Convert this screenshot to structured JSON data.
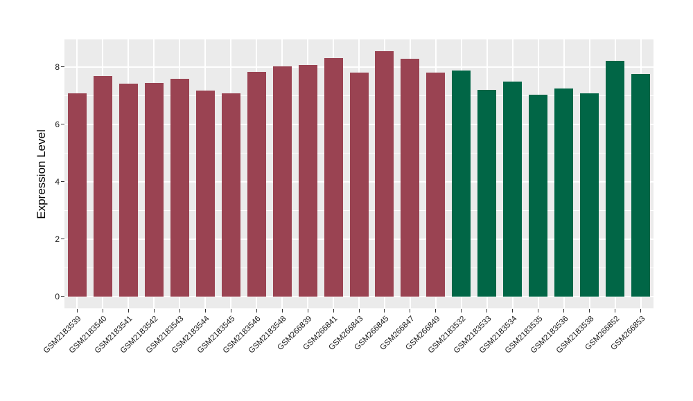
{
  "chart_data": {
    "type": "bar",
    "title": "",
    "ylabel": "Expression Level",
    "xlabel": "",
    "categories": [
      "GSM2183539",
      "GSM2183540",
      "GSM2183541",
      "GSM2183542",
      "GSM2183543",
      "GSM2183544",
      "GSM2183545",
      "GSM2183546",
      "GSM2183548",
      "GSM266839",
      "GSM266841",
      "GSM266843",
      "GSM266845",
      "GSM266847",
      "GSM266849",
      "GSM2183532",
      "GSM2183533",
      "GSM2183534",
      "GSM2183535",
      "GSM2183536",
      "GSM2183538",
      "GSM266852",
      "GSM266853"
    ],
    "values": [
      7.07,
      7.69,
      7.42,
      7.45,
      7.59,
      7.18,
      7.08,
      7.82,
      8.03,
      8.06,
      8.32,
      7.8,
      8.55,
      8.28,
      7.8,
      7.88,
      7.19,
      7.48,
      7.02,
      7.24,
      7.07,
      8.22,
      7.75
    ],
    "group_index": [
      0,
      0,
      0,
      0,
      0,
      0,
      0,
      0,
      0,
      0,
      0,
      0,
      0,
      0,
      0,
      1,
      1,
      1,
      1,
      1,
      1,
      1,
      1
    ],
    "groups": [
      {
        "name": "group-1",
        "color": "#9A4352"
      },
      {
        "name": "group-2",
        "color": "#016646"
      }
    ],
    "yticks": [
      0,
      2,
      4,
      6,
      8
    ],
    "minor_yticks": [
      1,
      3,
      5,
      7
    ],
    "ylim": [
      -0.42,
      8.96
    ],
    "grid": true,
    "legend": "none",
    "panel_background": "#EBEBEB",
    "grid_color": "#FFFFFF",
    "tick_color": "#333333",
    "label_color": "#1A1A1A"
  }
}
